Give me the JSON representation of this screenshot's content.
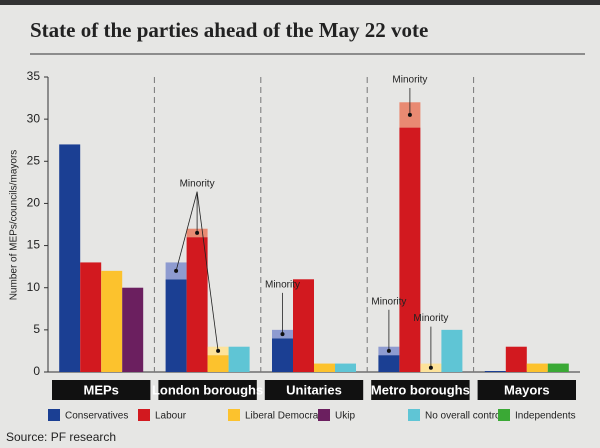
{
  "chart_data": {
    "type": "bar",
    "title": "State of the parties ahead of the May 22 vote",
    "y_label": "Number of MEPs/councils/mayors",
    "source": "Source: PF research",
    "categories": [
      "MEPs",
      "London boroughs",
      "Unitaries",
      "Metro boroughs",
      "Mayors"
    ],
    "series": [
      {
        "name": "Conservatives",
        "color": "#1b3f93",
        "minority_color": "#8e9bd0",
        "values": [
          27,
          11,
          4,
          2,
          0
        ],
        "minority": [
          null,
          2,
          1,
          1,
          null
        ]
      },
      {
        "name": "Labour",
        "color": "#d2191f",
        "minority_color": "#e98a72",
        "values": [
          13,
          16,
          11,
          29,
          3
        ],
        "minority": [
          null,
          1,
          null,
          3,
          null
        ]
      },
      {
        "name": "Liberal Democrats",
        "color": "#fcc22d",
        "minority_color": "#fde39a",
        "values": [
          12,
          2,
          1,
          0,
          1
        ],
        "minority": [
          null,
          1,
          null,
          1,
          null
        ]
      },
      {
        "name": "Ukip",
        "color": "#6b1f5f",
        "values": [
          10,
          null,
          null,
          null,
          null
        ]
      },
      {
        "name": "No overall control",
        "color": "#5fc5d5",
        "values": [
          null,
          3,
          1,
          5,
          null
        ]
      },
      {
        "name": "Independents",
        "color": "#3aa935",
        "values": [
          null,
          null,
          null,
          null,
          1
        ]
      }
    ],
    "annotations": [
      {
        "text": "Minority",
        "category": 1,
        "series": [
          0,
          1,
          2
        ]
      },
      {
        "text": "Minority",
        "category": 2,
        "series": [
          0
        ]
      },
      {
        "text": "Minority",
        "category": 3,
        "series": [
          0
        ]
      },
      {
        "text": "Minority",
        "category": 3,
        "series": [
          1
        ]
      },
      {
        "text": "Minority",
        "category": 3,
        "series": [
          2
        ]
      }
    ],
    "ylim": [
      0,
      35
    ],
    "yticks": [
      0,
      5,
      10,
      15,
      20,
      25,
      30,
      35
    ]
  }
}
